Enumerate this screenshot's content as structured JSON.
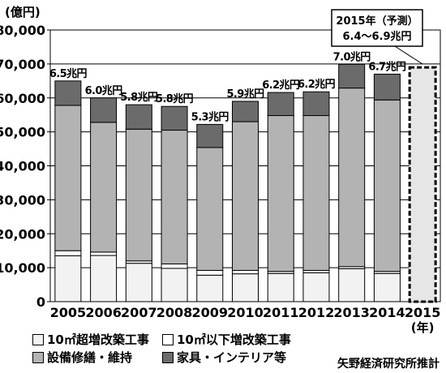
{
  "chart_data": {
    "type": "bar",
    "stacked": true,
    "y_unit_label": "(億円)",
    "x_unit_label": "(年)",
    "ylim": [
      0,
      80000
    ],
    "yticks": [
      0,
      10000,
      20000,
      30000,
      40000,
      50000,
      60000,
      70000,
      80000
    ],
    "ytick_labels": [
      "0",
      "10,000",
      "20,000",
      "30,000",
      "40,000",
      "50,000",
      "60,000",
      "70,000",
      "80,000"
    ],
    "categories": [
      "2005",
      "2006",
      "2007",
      "2008",
      "2009",
      "2010",
      "2011",
      "2012",
      "2013",
      "2014",
      "2015"
    ],
    "series": [
      {
        "name": "10㎡超増改築工事",
        "color": "#f2f2f2",
        "values": [
          13500,
          13600,
          11300,
          9800,
          7800,
          8200,
          8300,
          8500,
          9700,
          8300,
          null
        ]
      },
      {
        "name": "10㎡以下増改築工事",
        "color": "#ffffff",
        "values": [
          1500,
          1000,
          700,
          1300,
          1400,
          1000,
          600,
          700,
          600,
          600,
          null
        ]
      },
      {
        "name": "設備修繕・維持",
        "color": "#b3b3b3",
        "values": [
          42800,
          38200,
          38800,
          39400,
          36200,
          43800,
          45900,
          45600,
          52600,
          50500,
          null
        ]
      },
      {
        "name": "家具・インテリア等",
        "color": "#6b6b6b",
        "values": [
          7200,
          7200,
          7200,
          7000,
          6800,
          6000,
          6800,
          7000,
          7000,
          7600,
          null
        ]
      }
    ],
    "bar_labels": [
      "6.5兆円",
      "6.0兆円",
      "5.8兆円",
      "5.8兆円",
      "5.3兆円",
      "5.9兆円",
      "6.2兆円",
      "6.2兆円",
      "7.0兆円",
      "6.7兆円",
      ""
    ],
    "forecast": {
      "category": "2015",
      "value": 69000,
      "color": "#e6e6e6",
      "label_line1": "2015年（予測）",
      "label_line2": "6.4～6.9兆円"
    },
    "grid": true,
    "legend_position": "bottom-left"
  },
  "legend": [
    {
      "label": "10㎡超増改築工事",
      "color": "#f2f2f2"
    },
    {
      "label": "10㎡以下増改築工事",
      "color": "#ffffff"
    },
    {
      "label": "設備修繕・維持",
      "color": "#b3b3b3"
    },
    {
      "label": "家具・インテリア等",
      "color": "#6b6b6b"
    }
  ],
  "source": "矢野経済研究所推計"
}
